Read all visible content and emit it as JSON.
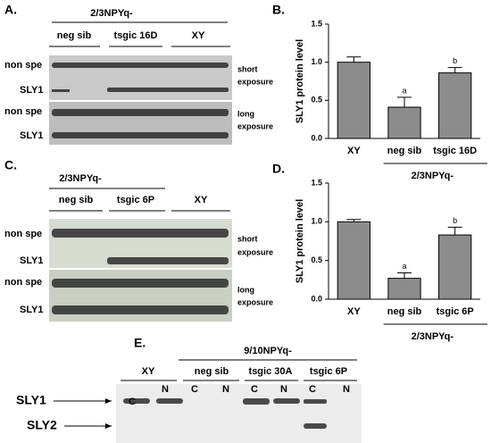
{
  "panel_a": {
    "letter": "A.",
    "group": "2/3NPYq-",
    "lanes": [
      "neg sib",
      "tsgic 16D",
      "XY"
    ],
    "rows": [
      "non spe",
      "SLY1",
      "non spe",
      "SLY1"
    ],
    "exposures": [
      [
        "short",
        "exposure"
      ],
      [
        "long",
        "exposure"
      ]
    ]
  },
  "panel_c": {
    "letter": "C.",
    "group": "2/3NPYq-",
    "lanes": [
      "neg sib",
      "tsgic 6P",
      "XY"
    ],
    "rows": [
      "non spe",
      "SLY1",
      "non spe",
      "SLY1"
    ],
    "exposures": [
      [
        "short",
        "exposure"
      ],
      [
        "long",
        "exposure"
      ]
    ]
  },
  "panel_e": {
    "letter": "E.",
    "group": "9/10NPYq-",
    "lanes": [
      "XY",
      "neg sib",
      "tsgic 30A",
      "tsgic 6P"
    ],
    "fractions": [
      "C",
      "N",
      "C",
      "N",
      "C",
      "N",
      "C",
      "N"
    ],
    "bands": [
      "SLY1",
      "SLY2"
    ]
  },
  "chart_data": [
    {
      "type": "bar",
      "panel": "B.",
      "ylabel": "SLY1 protein level",
      "categories": [
        "XY",
        "neg sib",
        "tsgic 16D"
      ],
      "values": [
        1.0,
        0.41,
        0.86
      ],
      "errors": [
        0.07,
        0.13,
        0.07
      ],
      "letters": [
        null,
        "a",
        "b"
      ],
      "group_label": "2/3NPYq-",
      "color": "#8c8c8c",
      "ylim": [
        0,
        1.5
      ],
      "yticks": [
        {
          "value": 0,
          "label": "0.0"
        },
        0.5,
        {
          "value": 1,
          "label": "1.0"
        },
        1.5
      ]
    },
    {
      "type": "bar",
      "panel": "D.",
      "ylabel": "SLY1 protein level",
      "categories": [
        "XY",
        "neg sib",
        "tsgic 6P"
      ],
      "values": [
        1.0,
        0.27,
        0.83
      ],
      "errors": [
        0.03,
        0.07,
        0.1
      ],
      "letters": [
        null,
        "a",
        "b"
      ],
      "group_label": "2/3NPYq-",
      "color": "#8c8c8c",
      "ylim": [
        0,
        1.5
      ],
      "yticks": [
        {
          "value": 0,
          "label": "0.0"
        },
        0.5,
        {
          "value": 1,
          "label": "1.0"
        },
        1.5
      ]
    }
  ]
}
